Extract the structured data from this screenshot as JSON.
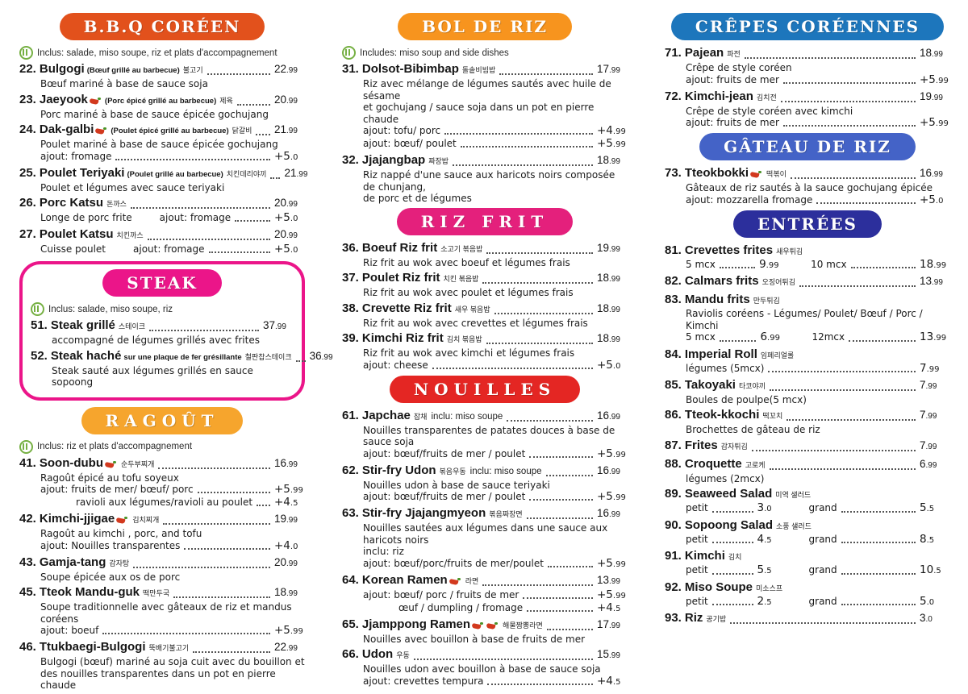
{
  "page_bg": "#ffffff",
  "icon_names": {
    "includes_icon": "utensils-icon",
    "spicy_icon": "chili-icon"
  },
  "columns": [
    {
      "sections": [
        {
          "id": "bbq",
          "title": "B.B.Q CORÉEN",
          "color": "#E2511C",
          "boxed": false,
          "includes": "Inclus: salade, miso soupe, riz et plats d'accompagnement",
          "items": [
            {
              "number": "22.",
              "name": "Bulgogi",
              "annot": "(Bœuf grillé au barbecue)",
              "korean": "불고기",
              "price": "22.99",
              "desc": [
                "Bœuf mariné à base de sauce soja"
              ]
            },
            {
              "number": "23.",
              "name": "Jaeyook",
              "chili": 1,
              "annot": "(Porc épicé grillé au barbecue)",
              "korean": "제육",
              "price": "20.99",
              "desc": [
                "Porc mariné à base de sauce épicée gochujang"
              ]
            },
            {
              "number": "24.",
              "name": "Dak-galbi",
              "chili": 1,
              "annot": "(Poulet épicé grillé au barbecue)",
              "korean": "닭갈비",
              "price": "21.99",
              "desc": [
                "Poulet mariné à base de sauce épicée gochujang"
              ],
              "subs": [
                {
                  "label": "ajout: fromage",
                  "price": "+5.0"
                }
              ]
            },
            {
              "number": "25.",
              "name": "Poulet Teriyaki",
              "annot": "(Poulet  grillé au barbecue)",
              "korean": "치킨데리야끼",
              "price": "21.99",
              "desc": [
                "Poulet et légumes avec sauce teriyaki"
              ]
            },
            {
              "number": "26.",
              "name": "Porc Katsu",
              "korean": "돈까스",
              "price": "20.99",
              "subs": [
                {
                  "pre": "Longe de porc frite",
                  "label": "ajout: fromage",
                  "price": "+5.0"
                }
              ]
            },
            {
              "number": "27.",
              "name": "Poulet Katsu",
              "korean": "치킨까스",
              "price": "20.99",
              "subs": [
                {
                  "pre": "Cuisse poulet",
                  "label": "ajout: fromage",
                  "price": "+5.0"
                }
              ]
            }
          ]
        },
        {
          "id": "steak",
          "title": "STEAK",
          "color": "#EB1589",
          "boxed": true,
          "includes": "Inclus: salade, miso soupe, riz",
          "items": [
            {
              "number": "51.",
              "name": "Steak grillé",
              "korean": "스테이크",
              "price": "37.99",
              "desc": [
                "accompagné de légumes grillés avec frites"
              ]
            },
            {
              "number": "52.",
              "name": "Steak haché",
              "annot": "sur une plaque de fer grésillante",
              "korean": "철판찹스테이크",
              "price": "36.99",
              "desc": [
                "Steak sauté aux légumes grillés en sauce sopoong"
              ]
            }
          ]
        },
        {
          "id": "ragout",
          "title": "RAGOÛT",
          "color": "#F6A52D",
          "boxed": false,
          "includes": "Inclus: riz et plats d'accompagnement",
          "items": [
            {
              "number": "41.",
              "name": "Soon-dubu",
              "chili": 1,
              "korean": "순두부찌개",
              "price": "16.99",
              "desc": [
                "Ragoût épicé au tofu soyeux"
              ],
              "subs": [
                {
                  "label": "ajout: fruits de mer/ bœuf/ porc",
                  "price": "+5.99"
                },
                {
                  "label": "ravioli aux légumes/ravioli au poulet",
                  "price": "+4.5",
                  "indent": 2
                }
              ]
            },
            {
              "number": "42.",
              "name": "Kimchi-jjigae",
              "chili": 1,
              "korean": "김치찌개",
              "price": "19.99",
              "desc": [
                "Ragoût au kimchi , porc, and tofu"
              ],
              "subs": [
                {
                  "label": "ajout: Nouilles transparentes",
                  "price": "+4.0"
                }
              ]
            },
            {
              "number": "43.",
              "name": "Gamja-tang",
              "korean": "감자탕",
              "price": "20.99",
              "desc": [
                "Soupe épicée aux os de porc"
              ]
            },
            {
              "number": "45.",
              "name": "Tteok Mandu-guk",
              "korean": "떡만두국",
              "price": "18.99",
              "desc": [
                "Soupe traditionnelle avec gâteaux de riz et mandus coréens"
              ],
              "subs": [
                {
                  "label": "ajout: boeuf",
                  "price": "+5.99"
                }
              ]
            },
            {
              "number": "46.",
              "name": "Ttukbaegi-Bulgogi",
              "korean": "뚝배기불고기",
              "price": "22.99",
              "desc": [
                "Bulgogi (bœuf) mariné au soja cuit avec du bouillon et",
                "des nouilles transparentes dans un pot en pierre chaude"
              ]
            }
          ]
        }
      ]
    },
    {
      "sections": [
        {
          "id": "bolderiz",
          "title": "BOL DE RIZ",
          "color": "#F7941E",
          "boxed": false,
          "includes": "Includes: miso soup and side dishes",
          "items": [
            {
              "number": "31.",
              "name": "Dolsot-Bibimbap",
              "korean": "돌솥비빔밥",
              "price": "17.99",
              "desc": [
                "Riz avec mélange de légumes sautés avec huile de sésame",
                "et gochujang / sauce soja dans un pot en pierre chaude"
              ],
              "subs": [
                {
                  "label": "ajout: tofu/ porc",
                  "price": "+4.99"
                },
                {
                  "label": "ajout: bœuf/ poulet",
                  "price": "+5.99"
                }
              ]
            },
            {
              "number": "32.",
              "name": "Jjajangbap",
              "korean": "짜장밥",
              "price": "18.99",
              "desc": [
                "Riz nappé d'une sauce aux haricots noirs composée de chunjang,",
                "de porc et de légumes"
              ]
            }
          ]
        },
        {
          "id": "rizfrit",
          "title": "RIZ FRIT",
          "color": "#E4207C",
          "boxed": false,
          "items": [
            {
              "number": "36.",
              "name": "Boeuf Riz frit",
              "korean": "소고기 볶음밥",
              "price": "19.99",
              "desc": [
                "Riz frit au wok avec boeuf et légumes frais"
              ]
            },
            {
              "number": "37.",
              "name": "Poulet Riz frit",
              "korean": "치킨 볶음밥",
              "price": "18.99",
              "desc": [
                "Riz frit au wok avec poulet et légumes frais"
              ]
            },
            {
              "number": "38.",
              "name": "Crevette Riz frit",
              "korean": "새우 볶음밥",
              "price": "18.99",
              "desc": [
                "Riz frit au wok avec crevettes et légumes frais"
              ]
            },
            {
              "number": "39.",
              "name": "Kimchi Riz frit",
              "korean": "김치 볶음밥",
              "price": "18.99",
              "desc": [
                "Riz frit au wok avec kimchi et légumes frais"
              ],
              "subs": [
                {
                  "label": "ajout: cheese",
                  "price": "+5.0"
                }
              ]
            }
          ]
        },
        {
          "id": "nouilles",
          "title": "NOUILLES",
          "color": "#E42623",
          "boxed": false,
          "items": [
            {
              "number": "61.",
              "name": "Japchae",
              "korean": "잡채",
              "note": "inclu: miso soupe",
              "price": "16.99",
              "desc": [
                "Nouilles transparentes de patates douces à base de sauce soja"
              ],
              "subs": [
                {
                  "label": "ajout: bœuf/fruits de mer / poulet",
                  "price": "+5.99"
                }
              ]
            },
            {
              "number": "62.",
              "name": "Stir-fry Udon",
              "korean": "볶음우동",
              "note": "inclu: miso soupe",
              "price": "16.99",
              "desc": [
                "Nouilles udon à base de sauce teriyaki"
              ],
              "subs": [
                {
                  "label": "ajout: bœuf/fruits de mer / poulet",
                  "price": "+5.99"
                }
              ]
            },
            {
              "number": "63.",
              "name": "Stir-fry Jjajangmyeon",
              "korean": "볶음짜장면",
              "price": "16.99",
              "desc": [
                "Nouilles sautées aux légumes dans une sauce aux haricots noirs",
                "inclu: riz"
              ],
              "subs": [
                {
                  "label": "ajout: bœuf/porc/fruits de mer/poulet",
                  "price": "+5.99"
                }
              ]
            },
            {
              "number": "64.",
              "name": "Korean Ramen",
              "chili": 1,
              "korean": "라면",
              "price": "13.99",
              "subs": [
                {
                  "label": "ajout: bœuf/ porc / fruits de mer",
                  "price": "+5.99"
                },
                {
                  "label": "œuf / dumpling / fromage",
                  "price": "+4.5",
                  "indent": 2
                }
              ]
            },
            {
              "number": "65.",
              "name": "Jjamppong Ramen",
              "chili": 2,
              "korean": "해물짬뽕라면",
              "price": "17.99",
              "desc": [
                "Nouilles avec bouillon à base de fruits de mer"
              ]
            },
            {
              "number": "66.",
              "name": "Udon",
              "korean": "우동",
              "price": "15.99",
              "desc": [
                "Nouilles udon avec bouillon à base de sauce soja"
              ],
              "subs": [
                {
                  "label": "ajout: crevettes tempura",
                  "price": "+4.5"
                }
              ]
            }
          ]
        }
      ]
    },
    {
      "sections": [
        {
          "id": "crepes",
          "title": "CRÊPES CORÉENNES",
          "color": "#1D76BC",
          "boxed": false,
          "items": [
            {
              "number": "71.",
              "name": "Pajean",
              "korean": "파전",
              "price": "18.99",
              "desc": [
                "Crêpe de style coréen"
              ],
              "subs": [
                {
                  "label": "ajout: fruits de mer",
                  "price": "+5.99"
                }
              ]
            },
            {
              "number": "72.",
              "name": "Kimchi-jean",
              "korean": "김치전",
              "price": "19.99",
              "desc": [
                "Crêpe de style coréen avec kimchi"
              ],
              "subs": [
                {
                  "label": "ajout: fruits de mer",
                  "price": "+5.99"
                }
              ]
            }
          ]
        },
        {
          "id": "gateau",
          "title": "GÂTEAU DE RIZ",
          "color": "#4463C7",
          "boxed": false,
          "items": [
            {
              "number": "73.",
              "name": "Tteokbokki",
              "chili": 1,
              "korean": "떡볶이",
              "price": "16.99",
              "desc": [
                "Gâteaux de riz sautés à la sauce gochujang épicée"
              ],
              "subs": [
                {
                  "label": "ajout: mozzarella fromage",
                  "price": "+5.0"
                }
              ]
            }
          ]
        },
        {
          "id": "entrees",
          "title": "ENTRÉES",
          "color": "#2C2F9C",
          "boxed": false,
          "items": [
            {
              "number": "81.",
              "name": "Crevettes frites",
              "korean": "새우튀김",
              "pairs": [
                {
                  "label": "5 mcx",
                  "price": "9.99"
                },
                {
                  "label": "10 mcx",
                  "price": "18.99"
                }
              ]
            },
            {
              "number": "82.",
              "name": "Calmars frits",
              "korean": "오징어튀김",
              "price": "13.99"
            },
            {
              "number": "83.",
              "name": "Mandu frits",
              "korean": "만두튀김",
              "desc": [
                "Raviolis coréens - Légumes/ Poulet/ Bœuf / Porc / Kimchi"
              ],
              "pairs": [
                {
                  "label": "5 mcx",
                  "price": "6.99"
                },
                {
                  "label": "12mcx",
                  "price": "13.99"
                }
              ]
            },
            {
              "number": "84.",
              "name": "Imperial Roll",
              "korean": "임페리얼롤",
              "subs": [
                {
                  "label": "légumes (5mcx)",
                  "price": "7.99"
                }
              ]
            },
            {
              "number": "85.",
              "name": "Takoyaki",
              "korean": "타코야끼",
              "price": "7.99",
              "desc": [
                "Boules de poulpe(5 mcx)"
              ]
            },
            {
              "number": "86.",
              "name": "Tteok-kkochi",
              "korean": "떡꼬치",
              "price": "7.99",
              "desc": [
                "Brochettes de gâteau de riz"
              ]
            },
            {
              "number": "87.",
              "name": "Frites",
              "korean": "감자튀김",
              "price": "7.99"
            },
            {
              "number": "88.",
              "name": "Croquette",
              "korean": "고로케",
              "price": "6.99",
              "desc": [
                "légumes (2mcx)"
              ]
            },
            {
              "number": "89.",
              "name": "Seaweed Salad",
              "korean": "미역 샐러드",
              "pairs": [
                {
                  "label": "petit",
                  "price": "3.0"
                },
                {
                  "label": "grand",
                  "price": "5.5"
                }
              ]
            },
            {
              "number": "90.",
              "name": "Sopoong Salad",
              "korean": "소풍 샐러드",
              "pairs": [
                {
                  "label": "petit",
                  "price": "4.5"
                },
                {
                  "label": "grand",
                  "price": "8.5"
                }
              ]
            },
            {
              "number": "91.",
              "name": "Kimchi",
              "korean": "김치",
              "pairs": [
                {
                  "label": "petit",
                  "price": "5.5"
                },
                {
                  "label": "grand",
                  "price": "10.5"
                }
              ]
            },
            {
              "number": "92.",
              "name": "Miso Soupe",
              "korean": "미소스프",
              "pairs": [
                {
                  "label": "petit",
                  "price": "2.5"
                },
                {
                  "label": "grand",
                  "price": "5.0"
                }
              ]
            },
            {
              "number": "93.",
              "name": "Riz",
              "korean": "공기밥",
              "price": "3.0"
            }
          ]
        }
      ]
    }
  ]
}
